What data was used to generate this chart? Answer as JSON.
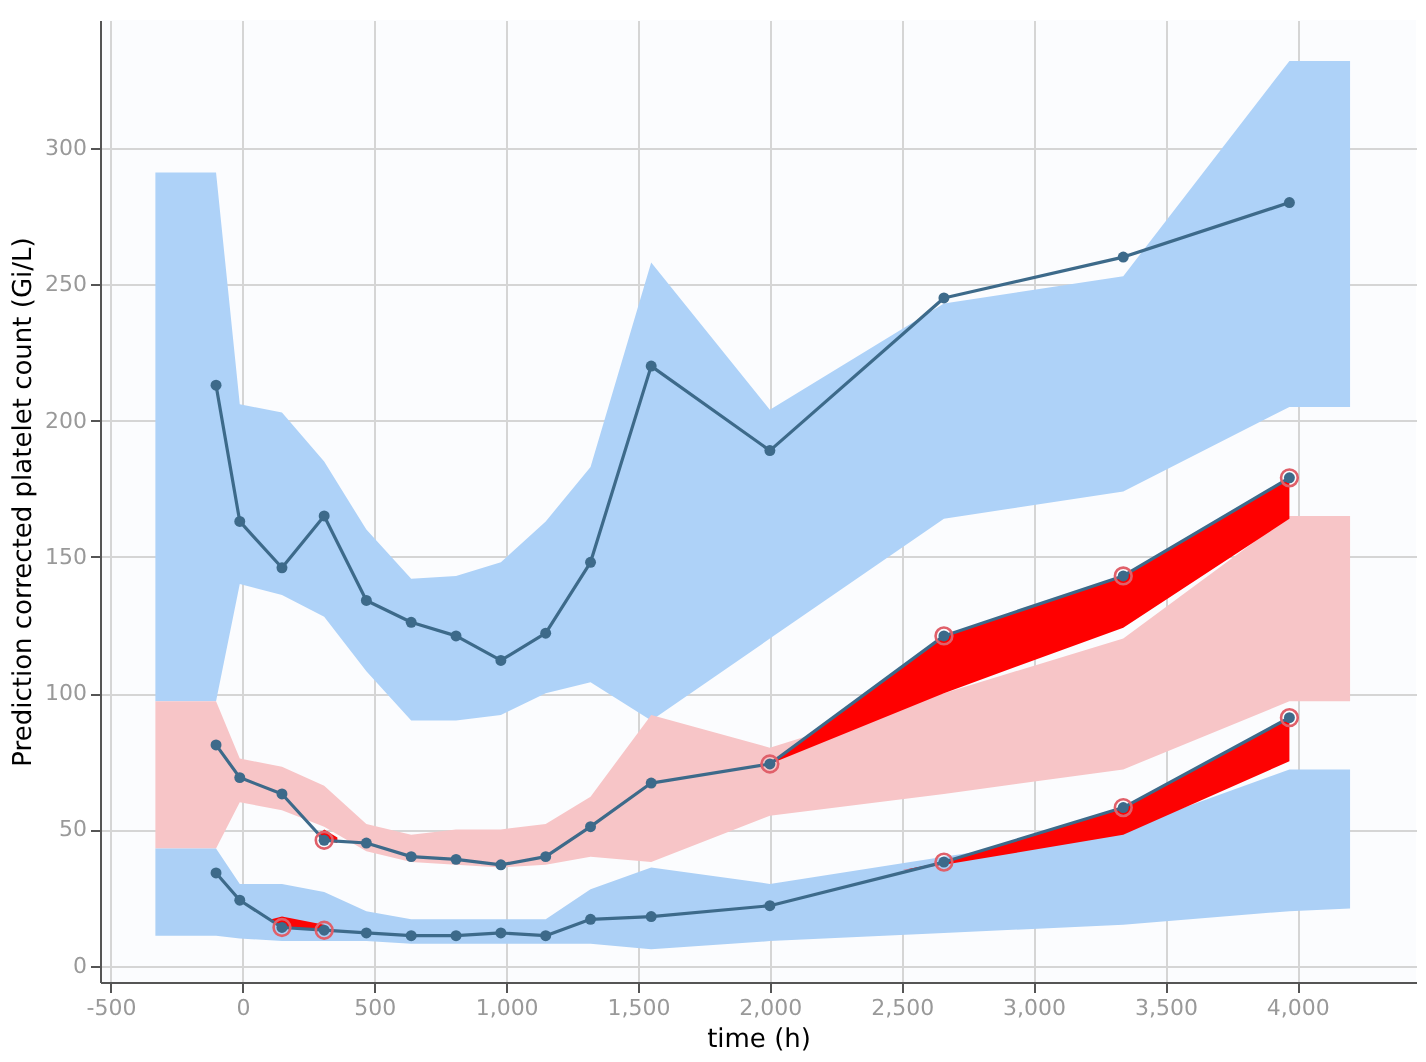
{
  "chart_data": {
    "type": "line",
    "xlabel": "time (h)",
    "ylabel": "Prediction corrected platelet count (Gi/L)",
    "xlim": [
      -540,
      4450
    ],
    "ylim": [
      -6,
      347
    ],
    "xticks": [
      {
        "value": -500,
        "label": "-500"
      },
      0,
      500,
      {
        "value": 1000,
        "label": "1,000"
      },
      {
        "value": 1500,
        "label": "1,500"
      },
      {
        "value": 2000,
        "label": "2,000"
      },
      {
        "value": 2500,
        "label": "2,500"
      },
      {
        "value": 3000,
        "label": "3,000"
      },
      {
        "value": 3500,
        "label": "3,500"
      },
      {
        "value": 4000,
        "label": "4,000"
      }
    ],
    "yticks": [
      0,
      50,
      100,
      150,
      200,
      250,
      300
    ],
    "grid": true,
    "marker": "circle",
    "line_style": "solid",
    "series": [
      {
        "type": "line",
        "color": "#aed2f8",
        "x": [
          -330,
          -100,
          -10,
          150,
          310,
          470,
          640,
          810,
          980,
          1150,
          1320,
          1550,
          2000,
          2660,
          3340,
          3970,
          4200
        ],
        "values": [
          null,
          null,
          null,
          null,
          null,
          null,
          null,
          null,
          null,
          null,
          null,
          null,
          null,
          null,
          null,
          null,
          null
        ],
        "lower": [
          97,
          97,
          140,
          136,
          128,
          108,
          90,
          90,
          92,
          100,
          104,
          90,
          120,
          164,
          174,
          205,
          205
        ],
        "upper": [
          291,
          291,
          206,
          203,
          185,
          160,
          142,
          143,
          148,
          163,
          183,
          258,
          204,
          243,
          253,
          332,
          332
        ]
      },
      {
        "type": "line",
        "color": "#f7c5c7",
        "x": [
          -330,
          -100,
          -10,
          150,
          310,
          470,
          640,
          810,
          980,
          1150,
          1320,
          1550,
          2000,
          2660,
          3340,
          3970,
          4200
        ],
        "values": [
          null,
          null,
          null,
          null,
          null,
          null,
          null,
          null,
          null,
          null,
          null,
          null,
          null,
          null,
          null,
          null,
          null
        ],
        "lower": [
          43,
          43,
          60,
          57,
          51,
          42,
          38,
          37,
          36,
          37,
          40,
          38,
          55,
          63,
          72,
          97,
          97
        ],
        "upper": [
          97,
          97,
          76,
          73,
          66,
          52,
          48,
          50,
          50,
          52,
          62,
          92,
          80,
          100,
          120,
          165,
          165
        ]
      },
      {
        "type": "line",
        "color": "#acd0f6",
        "x": [
          -330,
          -100,
          -10,
          150,
          310,
          470,
          640,
          810,
          980,
          1150,
          1320,
          1550,
          2000,
          2660,
          3340,
          3970,
          4200
        ],
        "values": [
          null,
          null,
          null,
          null,
          null,
          null,
          null,
          null,
          null,
          null,
          null,
          null,
          null,
          null,
          null,
          null,
          null
        ],
        "lower": [
          11,
          11,
          10,
          9,
          9,
          9,
          8,
          8,
          8,
          8,
          8,
          6,
          9,
          12,
          15,
          20,
          21
        ],
        "upper": [
          43,
          43,
          30,
          30,
          27,
          20,
          17,
          17,
          17,
          17,
          28,
          36,
          30,
          40,
          50,
          72,
          72
        ]
      },
      {
        "type": "line",
        "color": "#ff0000",
        "x": [
          2000,
          2660,
          3340,
          3970
        ],
        "values": [
          null,
          null,
          null,
          null
        ],
        "lower": [
          74,
          100,
          124,
          164
        ],
        "upper": [
          74,
          121,
          143,
          179
        ]
      },
      {
        "type": "line",
        "color": "#fd0202",
        "x": [
          2500,
          2660,
          3340,
          3970
        ],
        "values": [
          null,
          null,
          null,
          null
        ],
        "lower": [
          35,
          37,
          48,
          75
        ],
        "upper": [
          35,
          38,
          58,
          91
        ]
      },
      {
        "type": "line",
        "color": "#fb0404",
        "x": [
          110,
          150,
          310
        ],
        "values": [
          null,
          null,
          null
        ],
        "lower": [
          17,
          14,
          13
        ],
        "upper": [
          17,
          18,
          15
        ]
      },
      {
        "type": "line",
        "color": "#f90606",
        "x": [
          290,
          310,
          360
        ],
        "values": [
          null,
          null,
          null
        ],
        "lower": [
          47,
          46,
          45
        ],
        "upper": [
          48,
          50,
          47
        ]
      },
      {
        "type": "line",
        "color": "#3d6a8a",
        "x": [
          -100,
          -10,
          150,
          310,
          470,
          640,
          810,
          980,
          1150,
          1320,
          1550,
          2000,
          2660,
          3340,
          3970
        ],
        "values": [
          213,
          163,
          146,
          165,
          134,
          126,
          121,
          112,
          122,
          148,
          220,
          189,
          245,
          260,
          280
        ]
      },
      {
        "type": "line",
        "color": "#3d6a8a",
        "x": [
          -100,
          -10,
          150,
          310,
          470,
          640,
          810,
          980,
          1150,
          1320,
          1550,
          2000,
          2660,
          3340,
          3970
        ],
        "values": [
          81,
          69,
          63,
          46,
          45,
          40,
          39,
          37,
          40,
          51,
          67,
          74,
          121,
          143,
          179
        ]
      },
      {
        "type": "line",
        "color": "#3d6a8a",
        "x": [
          -100,
          -10,
          150,
          310,
          470,
          640,
          810,
          980,
          1150,
          1320,
          1550,
          2000,
          2660,
          3340,
          3970
        ],
        "values": [
          34,
          24,
          14,
          13,
          12,
          11,
          11,
          12,
          11,
          17,
          18,
          22,
          38,
          58,
          91
        ]
      },
      {
        "type": "scatter",
        "color": "#e0606a",
        "x": [
          150,
          310,
          310,
          2000,
          2660,
          3340,
          3970,
          2660,
          3340,
          3970
        ],
        "values": [
          14,
          13,
          46,
          74,
          121,
          143,
          179,
          38,
          58,
          91
        ]
      }
    ]
  }
}
